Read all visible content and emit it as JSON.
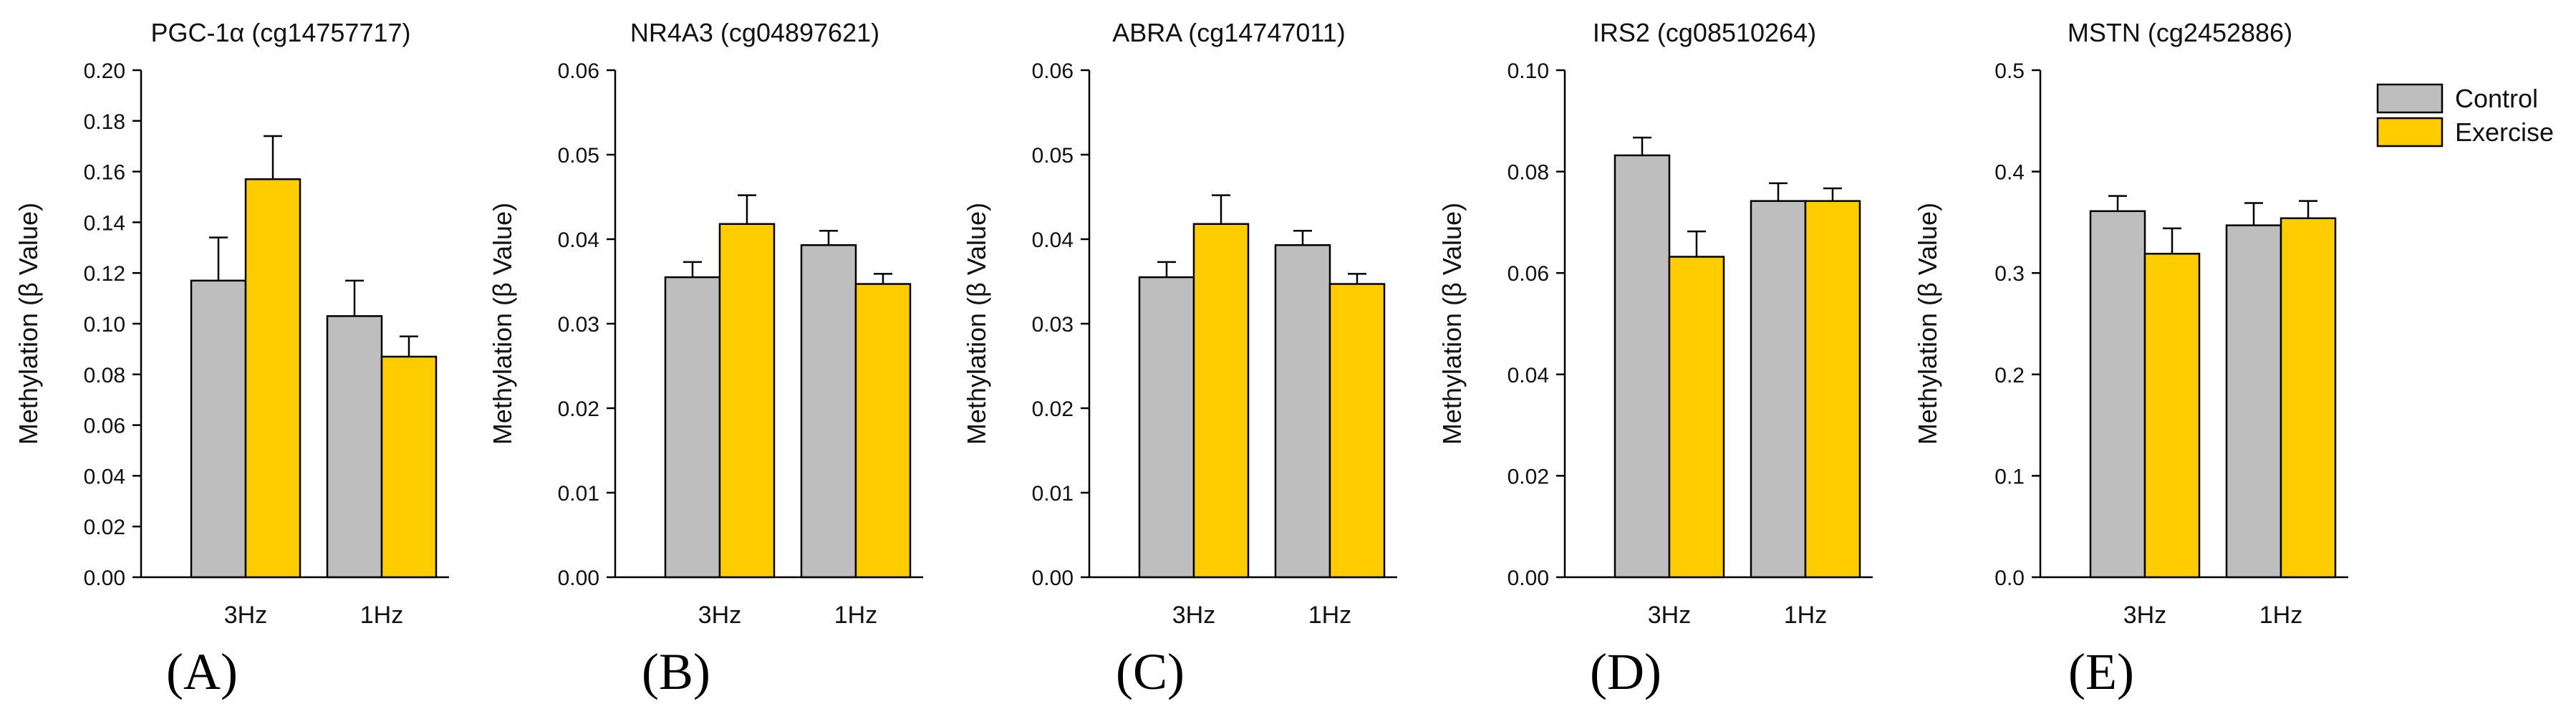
{
  "colors": {
    "control": "#BEBEBE",
    "exercise": "#FFCC00"
  },
  "legend": {
    "placement": "top-right",
    "entries": [
      "Control",
      "Exercise"
    ]
  },
  "chart_data": [
    {
      "type": "bar",
      "panel_label": "(A)",
      "title": "PGC-1α (cg14757717)",
      "ylabel": "Methylation (β Value)",
      "ylim": [
        0,
        0.2
      ],
      "yticks": [
        "0.00",
        "0.02",
        "0.04",
        "0.06",
        "0.08",
        "0.10",
        "0.12",
        "0.14",
        "0.16",
        "0.18",
        "0.20"
      ],
      "categories": [
        "3Hz",
        "1Hz"
      ],
      "series": [
        {
          "name": "Control",
          "values": [
            0.117,
            0.103
          ],
          "errors": [
            0.017,
            0.014
          ]
        },
        {
          "name": "Exercise",
          "values": [
            0.157,
            0.087
          ],
          "errors": [
            0.017,
            0.008
          ]
        }
      ]
    },
    {
      "type": "bar",
      "panel_label": "(B)",
      "title": "NR4A3 (cg04897621)",
      "ylabel": "Methylation (β Value)",
      "ylim": [
        0,
        0.06
      ],
      "yticks": [
        "0.00",
        "0.01",
        "0.02",
        "0.03",
        "0.04",
        "0.05",
        "0.06"
      ],
      "categories": [
        "3Hz",
        "1Hz"
      ],
      "series": [
        {
          "name": "Control",
          "values": [
            0.0355,
            0.0393
          ],
          "errors": [
            0.0018,
            0.0017
          ]
        },
        {
          "name": "Exercise",
          "values": [
            0.0418,
            0.0347
          ],
          "errors": [
            0.0034,
            0.0012
          ]
        }
      ]
    },
    {
      "type": "bar",
      "panel_label": "(C)",
      "title": "ABRA (cg14747011)",
      "ylabel": "Methylation (β Value)",
      "ylim": [
        0,
        0.06
      ],
      "yticks": [
        "0.00",
        "0.01",
        "0.02",
        "0.03",
        "0.04",
        "0.05",
        "0.06"
      ],
      "categories": [
        "3Hz",
        "1Hz"
      ],
      "series": [
        {
          "name": "Control",
          "values": [
            0.0355,
            0.0393
          ],
          "errors": [
            0.0018,
            0.0017
          ]
        },
        {
          "name": "Exercise",
          "values": [
            0.0418,
            0.0347
          ],
          "errors": [
            0.0034,
            0.0012
          ]
        }
      ]
    },
    {
      "type": "bar",
      "panel_label": "(D)",
      "title": "IRS2 (cg08510264)",
      "ylabel": "Methylation (β Value)",
      "ylim": [
        0,
        0.1
      ],
      "yticks": [
        "0.00",
        "0.02",
        "0.04",
        "0.06",
        "0.08",
        "0.10"
      ],
      "categories": [
        "3Hz",
        "1Hz"
      ],
      "series": [
        {
          "name": "Control",
          "values": [
            0.0832,
            0.0742
          ],
          "errors": [
            0.0035,
            0.0035
          ]
        },
        {
          "name": "Exercise",
          "values": [
            0.0632,
            0.0742
          ],
          "errors": [
            0.005,
            0.0025
          ]
        }
      ]
    },
    {
      "type": "bar",
      "panel_label": "(E)",
      "title": "MSTN (cg2452886)",
      "ylabel": "Methylation (β Value)",
      "ylim": [
        0,
        0.5
      ],
      "yticks": [
        "0.0",
        "0.1",
        "0.2",
        "0.3",
        "0.4",
        "0.5"
      ],
      "categories": [
        "3Hz",
        "1Hz"
      ],
      "series": [
        {
          "name": "Control",
          "values": [
            0.361,
            0.347
          ],
          "errors": [
            0.015,
            0.022
          ]
        },
        {
          "name": "Exercise",
          "values": [
            0.319,
            0.354
          ],
          "errors": [
            0.025,
            0.017
          ]
        }
      ]
    }
  ]
}
